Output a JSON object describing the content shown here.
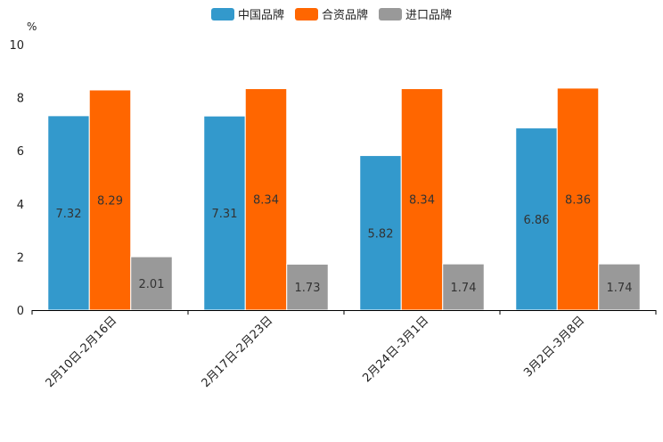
{
  "chart_data": {
    "type": "bar",
    "title": "",
    "xlabel": "",
    "ylabel": "%",
    "ylim": [
      0,
      10
    ],
    "yticks": [
      0,
      2,
      4,
      6,
      8,
      10
    ],
    "grid": false,
    "legend_position": "top-center",
    "categories": [
      "2月10日-2月16日",
      "2月17日-2月23日",
      "2月24日-3月1日",
      "3月2日-3月8日"
    ],
    "series": [
      {
        "name": "中国品牌",
        "color": "#3399CC",
        "values": [
          7.32,
          7.31,
          5.82,
          6.86
        ],
        "labels": [
          "7.32",
          "7.31",
          "5.82",
          "6.86"
        ]
      },
      {
        "name": "合资品牌",
        "color": "#FF6600",
        "values": [
          8.29,
          8.34,
          8.34,
          8.36
        ],
        "labels": [
          "8.29",
          "8.34",
          "8.34",
          "8.36"
        ]
      },
      {
        "name": "进口品牌",
        "color": "#999999",
        "values": [
          2.01,
          1.73,
          1.74,
          1.74
        ],
        "labels": [
          "2.01",
          "1.73",
          "1.74",
          "1.74"
        ]
      }
    ]
  }
}
